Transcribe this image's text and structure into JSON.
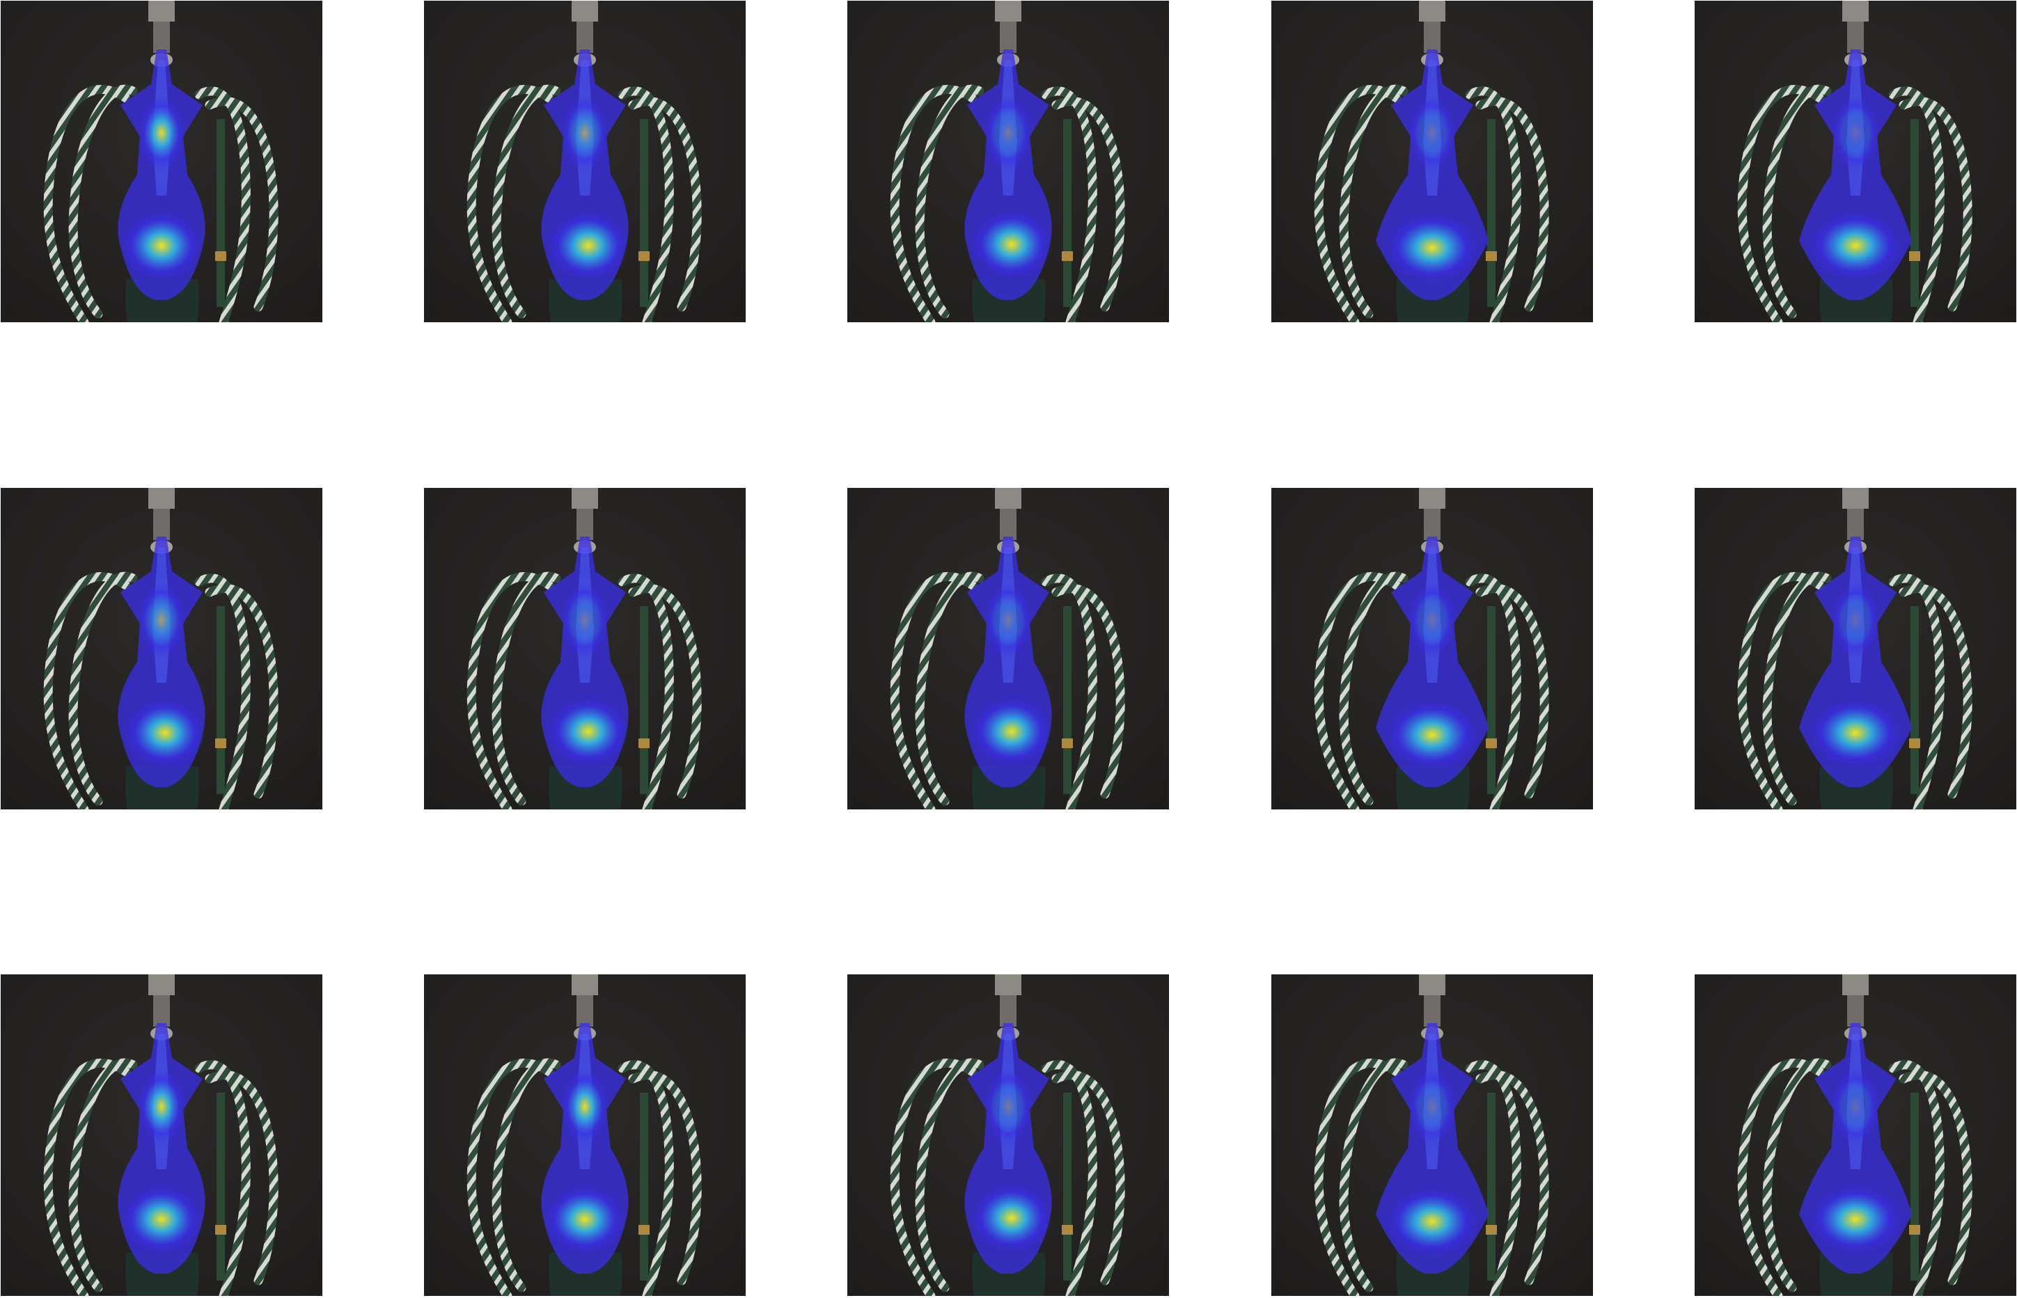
{
  "figure": {
    "rows": 3,
    "columns": 5,
    "colors": {
      "page": "#ffffff",
      "photo_background": "#1f1d1c",
      "hose_dark": "#2f4d3a",
      "hose_light": "#d6d9d4",
      "metal": "#8d8a86",
      "overlay_low": "#3a2ee6",
      "overlay_mid": "#2fb8e0",
      "overlay_high": "#f2e21a"
    },
    "tiles": [
      {
        "variant": 0
      },
      {
        "variant": 1
      },
      {
        "variant": 2
      },
      {
        "variant": 3
      },
      {
        "variant": 4
      },
      {
        "variant": 1
      },
      {
        "variant": 2
      },
      {
        "variant": 2
      },
      {
        "variant": 3
      },
      {
        "variant": 4
      },
      {
        "variant": 0
      },
      {
        "variant": 0
      },
      {
        "variant": 2
      },
      {
        "variant": 3
      },
      {
        "variant": 4
      }
    ]
  }
}
